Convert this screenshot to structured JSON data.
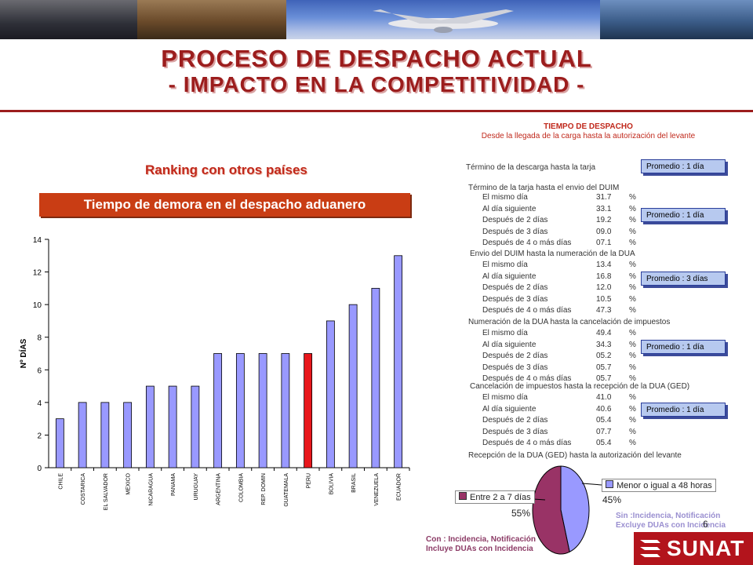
{
  "slide": {
    "title_line1": "PROCESO DE DESPACHO ACTUAL",
    "title_line2": "- IMPACTO EN LA COMPETITIVIDAD -",
    "ranking_label": "Ranking con otros países",
    "chart_banner": "Tiempo de demora en el despacho aduanero",
    "page_number": "6",
    "logo_text": "SUNAT"
  },
  "colors": {
    "title": "#9c1d1d",
    "bar_default": "#9999ff",
    "bar_highlight": "#e8171c",
    "pie_left": "#993366",
    "pie_right": "#9999ff",
    "promedio_fill": "#b7c9ef",
    "logo_red": "#b3141c"
  },
  "chart_data": [
    {
      "type": "bar",
      "ylabel": "Nº DÍAS",
      "ylim": [
        0,
        14
      ],
      "yticks": [
        0,
        2,
        4,
        6,
        8,
        10,
        12,
        14
      ],
      "categories": [
        "CHILE",
        "COSTARICA",
        "EL SALVADOR",
        "MEXICO",
        "NICARAGUA",
        "PANAMA",
        "URUGUAY",
        "ARGENTINA",
        "COLOMBIA",
        "REP. DOMIN",
        "GUATEMALA",
        "PERU",
        "BOLIVIA",
        "BRASIL",
        "VENEZUELA",
        "ECUADOR"
      ],
      "values": [
        3,
        4,
        4,
        4,
        5,
        5,
        5,
        7,
        7,
        7,
        7,
        7,
        9,
        10,
        11,
        13
      ],
      "highlight": "PERU",
      "grid": false
    },
    {
      "type": "pie",
      "slices": [
        {
          "label": "Menor o igual a 48 horas",
          "value": 45,
          "display": "45%"
        },
        {
          "label": "Entre 2 a 7 días",
          "value": 55,
          "display": "55%"
        }
      ]
    }
  ],
  "despacho": {
    "title": "TIEMPO DE DESPACHO",
    "subtitle": "Desde la llegada de la carga hasta la autorización del levante",
    "stage1": "Término de la descarga hasta la tarja",
    "stage2": "Término de la tarja hasta el envio del DUIM",
    "stage2_rows": [
      {
        "label": "El mismo día",
        "pct": "31.7",
        "unit": "%"
      },
      {
        "label": "Al día siguiente",
        "pct": "33.1",
        "unit": "%"
      },
      {
        "label": "Después de 2 días",
        "pct": "19.2",
        "unit": "%"
      },
      {
        "label": "Después de 3 días",
        "pct": "09.0",
        "unit": "%"
      },
      {
        "label": "Después de 4 o más días",
        "pct": "07.1",
        "unit": "%"
      }
    ],
    "stage3": "Envio del DUIM  hasta la numeración de la DUA",
    "stage3_rows": [
      {
        "label": "El mismo día",
        "pct": "13.4",
        "unit": "%"
      },
      {
        "label": "Al día siguiente",
        "pct": "16.8",
        "unit": "%"
      },
      {
        "label": "Después de 2 días",
        "pct": "12.0",
        "unit": "%"
      },
      {
        "label": "Después de 3 días",
        "pct": "10.5",
        "unit": "%"
      },
      {
        "label": "Después de 4 o más días",
        "pct": "47.3",
        "unit": "%"
      }
    ],
    "stage4": "Numeración de la DUA hasta la cancelación de impuestos",
    "stage4_rows": [
      {
        "label": "El mismo día",
        "pct": "49.4",
        "unit": "%"
      },
      {
        "label": "Al día siguiente",
        "pct": "34.3",
        "unit": "%"
      },
      {
        "label": "Después de 2 días",
        "pct": "05.2",
        "unit": "%"
      },
      {
        "label": "Después de 3 días",
        "pct": "05.7",
        "unit": "%"
      },
      {
        "label": "Después de 4 o más días",
        "pct": "05.7",
        "unit": "%"
      }
    ],
    "stage5": "Cancelación de impuestos hasta la recepción de la DUA (GED)",
    "stage5_rows": [
      {
        "label": "El mismo día",
        "pct": "41.0",
        "unit": "%"
      },
      {
        "label": "Al día siguiente",
        "pct": "40.6",
        "unit": "%"
      },
      {
        "label": "Después de 2 días",
        "pct": "05.4",
        "unit": "%"
      },
      {
        "label": "Después de 3 días",
        "pct": "07.7",
        "unit": "%"
      },
      {
        "label": "Después de 4 o más días",
        "pct": "05.4",
        "unit": "%"
      }
    ],
    "stage6": "Recepción de la DUA (GED) hasta la autorización del levante",
    "promedios": [
      "Promedio : 1 día",
      "Promedio : 1 día",
      "Promedio : 3 días",
      "Promedio : 1 día",
      "Promedio : 1 día"
    ]
  },
  "notes": {
    "sin_line1": "Sin :Incidencia, Notificación",
    "sin_line2": "Excluye DUAs con Incidencia",
    "con_line1": "Con : Incidencia, Notificación",
    "con_line2": "Incluye DUAs con Incidencia"
  }
}
